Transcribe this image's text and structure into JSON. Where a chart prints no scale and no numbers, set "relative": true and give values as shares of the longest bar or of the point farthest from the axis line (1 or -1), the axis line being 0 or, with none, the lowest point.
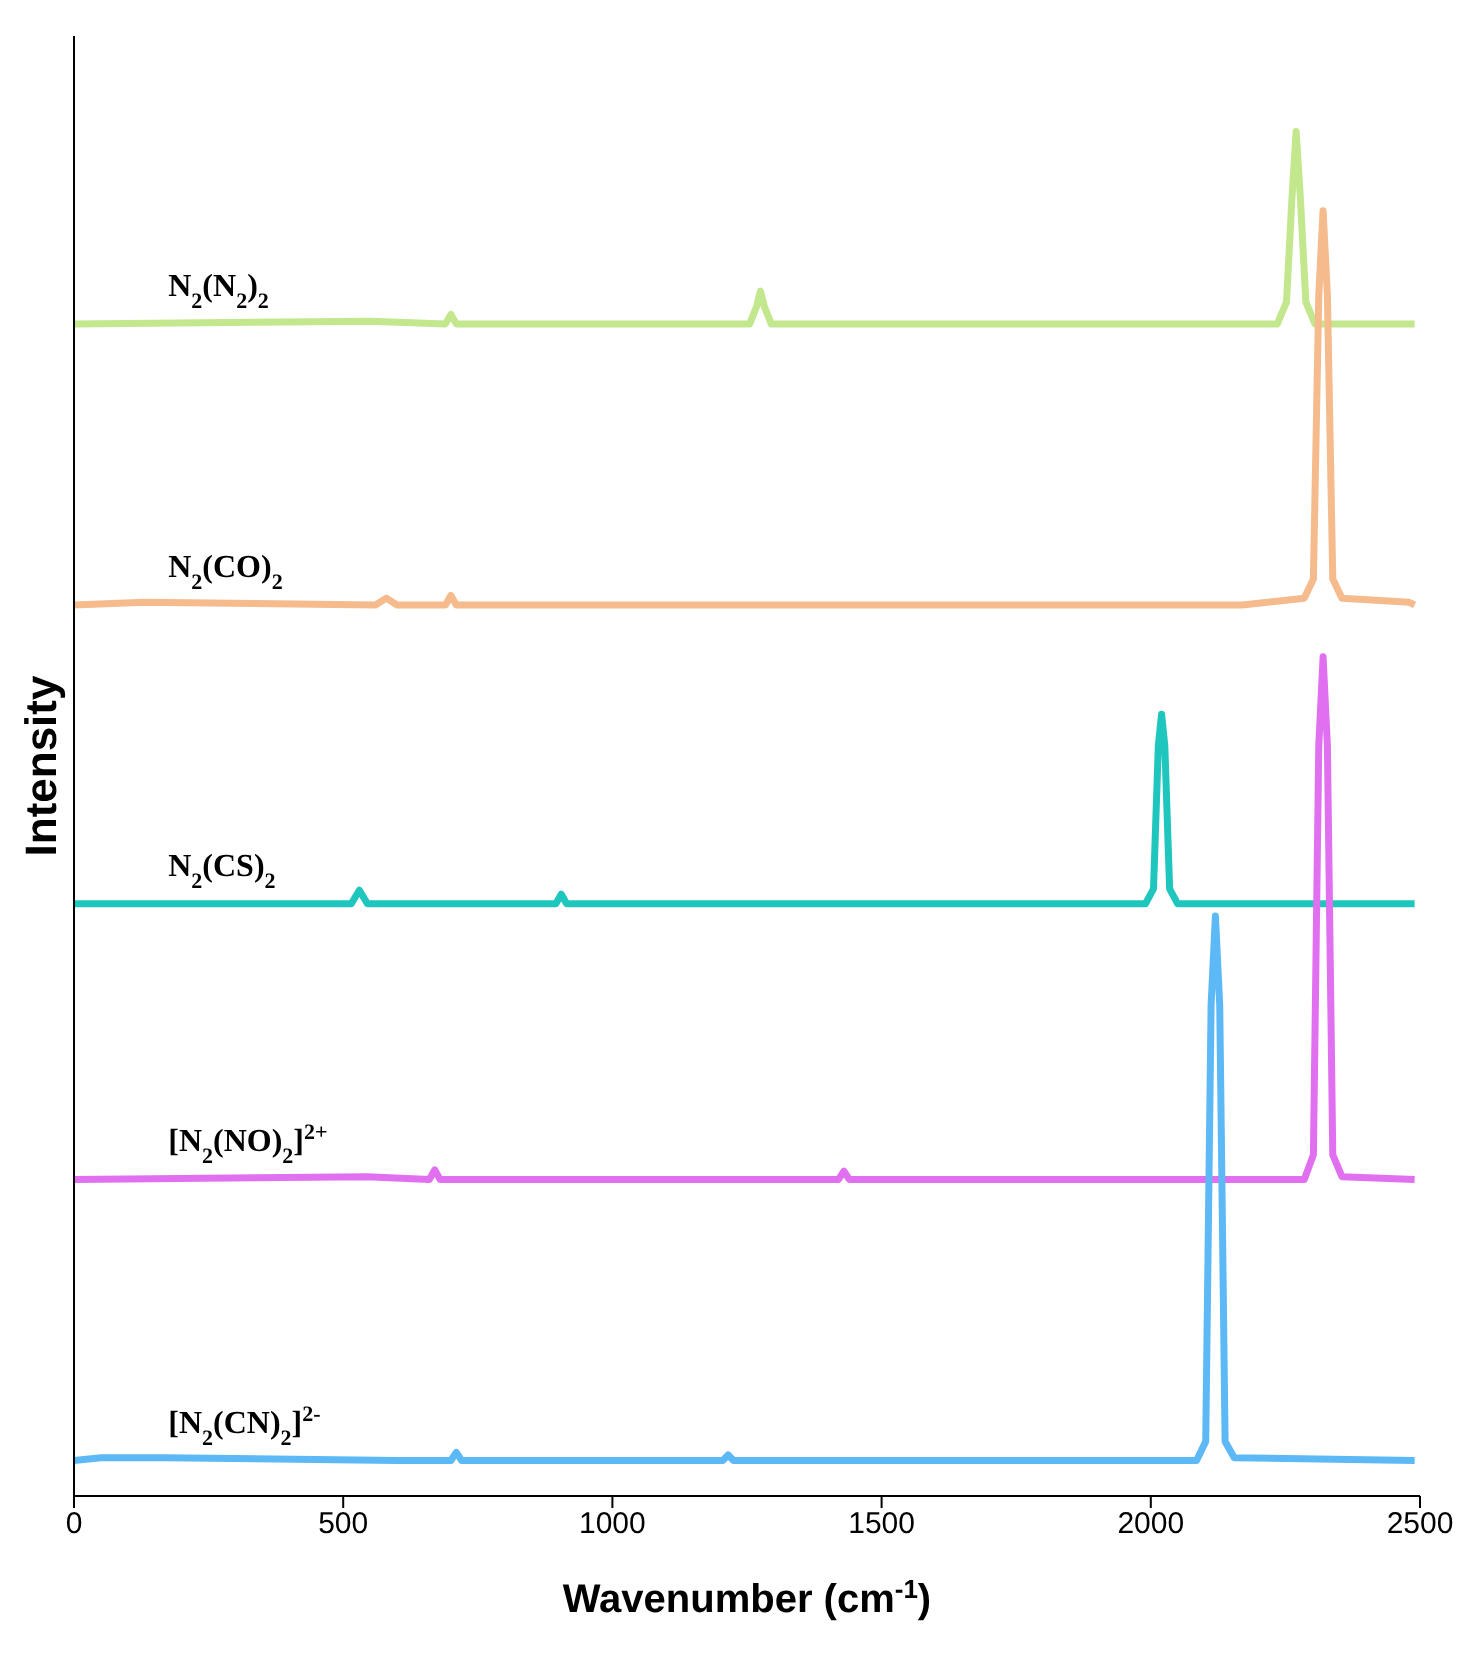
{
  "chart_data": {
    "type": "line",
    "relative": true,
    "xlabel": "Wavenumber (cm$^{-1}$)",
    "ylabel": "Intensity",
    "xlim": [
      0,
      2500
    ],
    "xticks": [
      0,
      500,
      1000,
      1500,
      2000,
      2500
    ],
    "legend": false,
    "marker": "none",
    "line_style": "solid",
    "series": [
      {
        "name": "N$_{2}$(N$_{2}$)$_{2}$",
        "color": "#c3e78c",
        "x": [
          0,
          550,
          690,
          700,
          710,
          1255,
          1268,
          1275,
          1282,
          1295,
          2235,
          2252,
          2262,
          2270,
          2278,
          2288,
          2305,
          2490
        ],
        "values": [
          0.859,
          0.861,
          0.859,
          0.866,
          0.859,
          0.859,
          0.872,
          0.883,
          0.872,
          0.859,
          0.859,
          0.875,
          0.95,
          1.0,
          0.95,
          0.875,
          0.859,
          0.859
        ]
      },
      {
        "name": "N$_{2}$(CO)$_{2}$",
        "color": "#f5bb8c",
        "x": [
          0,
          130,
          560,
          580,
          600,
          690,
          700,
          710,
          2170,
          2285,
          2302,
          2312,
          2320,
          2328,
          2338,
          2355,
          2480,
          2490
        ],
        "values": [
          0.653,
          0.655,
          0.653,
          0.658,
          0.653,
          0.653,
          0.66,
          0.653,
          0.653,
          0.658,
          0.672,
          0.88,
          0.942,
          0.88,
          0.672,
          0.658,
          0.655,
          0.653
        ]
      },
      {
        "name": "N$_{2}$(CS)$_{2}$",
        "color": "#1fc6be",
        "x": [
          0,
          515,
          530,
          545,
          895,
          905,
          915,
          1990,
          2005,
          2014,
          2020,
          2026,
          2035,
          2050,
          2490
        ],
        "values": [
          0.434,
          0.434,
          0.444,
          0.434,
          0.434,
          0.441,
          0.434,
          0.434,
          0.445,
          0.55,
          0.573,
          0.55,
          0.445,
          0.434,
          0.434
        ]
      },
      {
        "name": "[N$_{2}$(NO)$_{2}$]$^{2+}$",
        "color": "#e070f0",
        "x": [
          0,
          545,
          660,
          670,
          680,
          1420,
          1430,
          1440,
          2285,
          2302,
          2312,
          2320,
          2328,
          2338,
          2355,
          2490
        ],
        "values": [
          0.232,
          0.234,
          0.232,
          0.239,
          0.232,
          0.232,
          0.238,
          0.232,
          0.232,
          0.25,
          0.55,
          0.615,
          0.55,
          0.25,
          0.234,
          0.232
        ]
      },
      {
        "name": "[N$_{2}$(CN)$_{2}$]$^{2-}$",
        "color": "#5cb9f5",
        "x": [
          0,
          50,
          170,
          600,
          700,
          710,
          720,
          1205,
          1215,
          1225,
          2085,
          2102,
          2112,
          2120,
          2128,
          2138,
          2155,
          2490
        ],
        "values": [
          0.026,
          0.028,
          0.028,
          0.026,
          0.026,
          0.032,
          0.026,
          0.026,
          0.03,
          0.026,
          0.026,
          0.04,
          0.36,
          0.425,
          0.36,
          0.04,
          0.028,
          0.026
        ]
      }
    ]
  }
}
